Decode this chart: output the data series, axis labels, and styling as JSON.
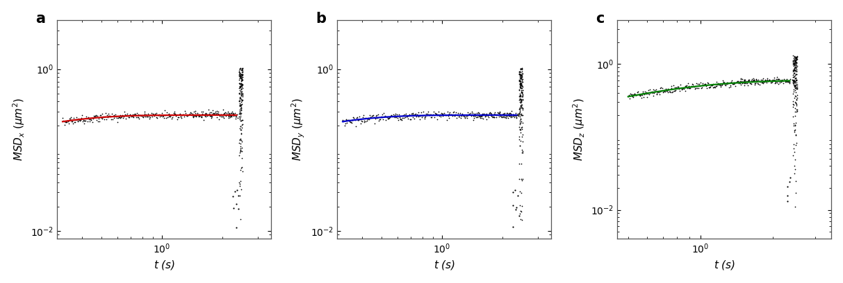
{
  "panel_labels": [
    "a",
    "b",
    "c"
  ],
  "ylabels": [
    "$MSD_x\\ (\\mu m^2)$",
    "$MSD_y\\ (\\mu m^2)$",
    "$MSD_z\\ (\\mu m^2)$"
  ],
  "xlabel": "$t$ (s)",
  "fit_colors": [
    "#cc0000",
    "#0000cc",
    "#008000"
  ],
  "dot_color": "#000000",
  "xlim_ab": [
    0.3,
    3.5
  ],
  "xlim_c": [
    0.45,
    3.5
  ],
  "ylim_ab": [
    0.008,
    4.0
  ],
  "ylim_c": [
    0.004,
    4.0
  ],
  "plateau_ab": 0.27,
  "plateau_c": 0.6,
  "tau_ab": 0.18,
  "tau_c": 0.55,
  "t_start_ab": 0.32,
  "t_start_c": 0.5,
  "t_end_main": 2.35,
  "t_cutoff": 2.45,
  "background_color": "#ffffff",
  "panel_label_fontsize": 15,
  "axis_label_fontsize": 11,
  "tick_label_fontsize": 10,
  "spine_color": "#555555"
}
